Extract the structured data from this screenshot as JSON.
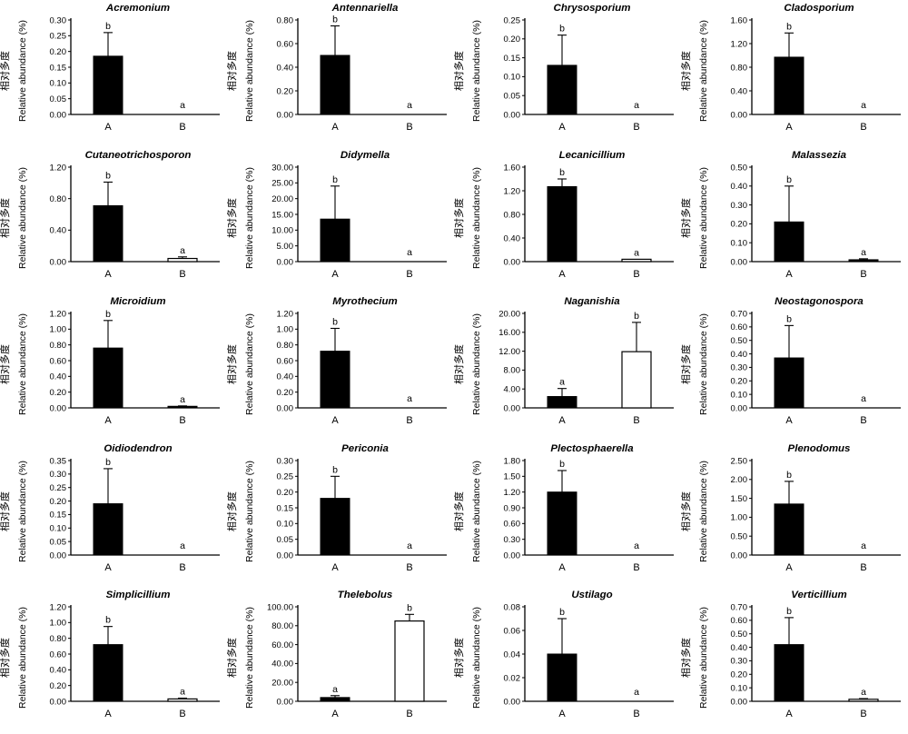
{
  "figure": {
    "y_axis_label_zh": "相对多度",
    "y_axis_label_en": "Relative abundance (%)",
    "x_categories": [
      "A",
      "B"
    ],
    "colors": {
      "bar_filled": "#000000",
      "bar_open": "#ffffff",
      "axis": "#000000",
      "background": "#ffffff"
    },
    "layout": {
      "rows": 5,
      "columns": 4,
      "grid": "off",
      "legend": "none"
    }
  },
  "chart_data": [
    {
      "type": "bar",
      "title": "Acremonium",
      "categories": [
        "A",
        "B"
      ],
      "values": [
        0.185,
        0
      ],
      "errors_plus": [
        0.075,
        0
      ],
      "sig_letters": [
        "b",
        "a"
      ],
      "bar_fills": [
        "black",
        "white"
      ],
      "ylim": [
        0,
        0.3
      ],
      "ytick_step": 0.05,
      "ytick_labels": [
        "0.00",
        "0.05",
        "0.10",
        "0.15",
        "0.20",
        "0.25",
        "0.30"
      ]
    },
    {
      "type": "bar",
      "title": "Antennariella",
      "categories": [
        "A",
        "B"
      ],
      "values": [
        0.5,
        0
      ],
      "errors_plus": [
        0.25,
        0
      ],
      "sig_letters": [
        "b",
        "a"
      ],
      "bar_fills": [
        "black",
        "white"
      ],
      "ylim": [
        0,
        0.8
      ],
      "ytick_step": 0.2,
      "ytick_labels": [
        "0.00",
        "0.20",
        "0.40",
        "0.60",
        "0.80"
      ]
    },
    {
      "type": "bar",
      "title": "Chrysosporium",
      "categories": [
        "A",
        "B"
      ],
      "values": [
        0.13,
        0
      ],
      "errors_plus": [
        0.08,
        0
      ],
      "sig_letters": [
        "b",
        "a"
      ],
      "bar_fills": [
        "black",
        "white"
      ],
      "ylim": [
        0,
        0.25
      ],
      "ytick_step": 0.05,
      "ytick_labels": [
        "0.00",
        "0.05",
        "0.10",
        "0.15",
        "0.20",
        "0.25"
      ]
    },
    {
      "type": "bar",
      "title": "Cladosporium",
      "categories": [
        "A",
        "B"
      ],
      "values": [
        0.97,
        0
      ],
      "errors_plus": [
        0.41,
        0
      ],
      "sig_letters": [
        "b",
        "a"
      ],
      "bar_fills": [
        "black",
        "white"
      ],
      "ylim": [
        0,
        1.6
      ],
      "ytick_step": 0.4,
      "ytick_labels": [
        "0.00",
        "0.40",
        "0.80",
        "1.20",
        "1.60"
      ]
    },
    {
      "type": "bar",
      "title": "Cutaneotrichosporon",
      "categories": [
        "A",
        "B"
      ],
      "values": [
        0.71,
        0.04
      ],
      "errors_plus": [
        0.3,
        0.02
      ],
      "sig_letters": [
        "b",
        "a"
      ],
      "bar_fills": [
        "black",
        "white"
      ],
      "ylim": [
        0,
        1.2
      ],
      "ytick_step": 0.4,
      "ytick_labels": [
        "0.00",
        "0.40",
        "0.80",
        "1.20"
      ]
    },
    {
      "type": "bar",
      "title": "Didymella",
      "categories": [
        "A",
        "B"
      ],
      "values": [
        13.5,
        0
      ],
      "errors_plus": [
        10.5,
        0
      ],
      "sig_letters": [
        "b",
        "a"
      ],
      "bar_fills": [
        "black",
        "white"
      ],
      "ylim": [
        0,
        30
      ],
      "ytick_step": 5,
      "ytick_labels": [
        "0.00",
        "5.00",
        "10.00",
        "15.00",
        "20.00",
        "25.00",
        "30.00"
      ]
    },
    {
      "type": "bar",
      "title": "Lecanicillium",
      "categories": [
        "A",
        "B"
      ],
      "values": [
        1.27,
        0.04
      ],
      "errors_plus": [
        0.13,
        0
      ],
      "sig_letters": [
        "b",
        "a"
      ],
      "bar_fills": [
        "black",
        "white"
      ],
      "ylim": [
        0,
        1.6
      ],
      "ytick_step": 0.4,
      "ytick_labels": [
        "0.00",
        "0.40",
        "0.80",
        "1.20",
        "1.60"
      ]
    },
    {
      "type": "bar",
      "title": "Malassezia",
      "categories": [
        "A",
        "B"
      ],
      "values": [
        0.21,
        0.01
      ],
      "errors_plus": [
        0.19,
        0.005
      ],
      "sig_letters": [
        "b",
        "a"
      ],
      "bar_fills": [
        "black",
        "black"
      ],
      "ylim": [
        0,
        0.5
      ],
      "ytick_step": 0.1,
      "ytick_labels": [
        "0.00",
        "0.10",
        "0.20",
        "0.30",
        "0.40",
        "0.50"
      ]
    },
    {
      "type": "bar",
      "title": "Microidium",
      "categories": [
        "A",
        "B"
      ],
      "values": [
        0.76,
        0.02
      ],
      "errors_plus": [
        0.35,
        0.005
      ],
      "sig_letters": [
        "b",
        "a"
      ],
      "bar_fills": [
        "black",
        "black"
      ],
      "ylim": [
        0,
        1.2
      ],
      "ytick_step": 0.2,
      "ytick_labels": [
        "0.00",
        "0.20",
        "0.40",
        "0.60",
        "0.80",
        "1.00",
        "1.20"
      ]
    },
    {
      "type": "bar",
      "title": "Myrothecium",
      "categories": [
        "A",
        "B"
      ],
      "values": [
        0.72,
        0
      ],
      "errors_plus": [
        0.29,
        0
      ],
      "sig_letters": [
        "b",
        "a"
      ],
      "bar_fills": [
        "black",
        "white"
      ],
      "ylim": [
        0,
        1.2
      ],
      "ytick_step": 0.2,
      "ytick_labels": [
        "0.00",
        "0.20",
        "0.40",
        "0.60",
        "0.80",
        "1.00",
        "1.20"
      ]
    },
    {
      "type": "bar",
      "title": "Naganishia",
      "categories": [
        "A",
        "B"
      ],
      "values": [
        2.4,
        11.9
      ],
      "errors_plus": [
        1.7,
        6.2
      ],
      "sig_letters": [
        "a",
        "b"
      ],
      "bar_fills": [
        "black",
        "white"
      ],
      "ylim": [
        0,
        20
      ],
      "ytick_step": 4,
      "ytick_labels": [
        "0.00",
        "4.00",
        "8.00",
        "12.00",
        "16.00",
        "20.00"
      ]
    },
    {
      "type": "bar",
      "title": "Neostagonospora",
      "categories": [
        "A",
        "B"
      ],
      "values": [
        0.37,
        0
      ],
      "errors_plus": [
        0.24,
        0
      ],
      "sig_letters": [
        "b",
        "a"
      ],
      "bar_fills": [
        "black",
        "white"
      ],
      "ylim": [
        0,
        0.7
      ],
      "ytick_step": 0.1,
      "ytick_labels": [
        "0.00",
        "0.10",
        "0.20",
        "0.30",
        "0.40",
        "0.50",
        "0.60",
        "0.70"
      ]
    },
    {
      "type": "bar",
      "title": "Oidiodendron",
      "categories": [
        "A",
        "B"
      ],
      "values": [
        0.19,
        0
      ],
      "errors_plus": [
        0.13,
        0
      ],
      "sig_letters": [
        "b",
        "a"
      ],
      "bar_fills": [
        "black",
        "white"
      ],
      "ylim": [
        0,
        0.35
      ],
      "ytick_step": 0.05,
      "ytick_labels": [
        "0.00",
        "0.05",
        "0.10",
        "0.15",
        "0.20",
        "0.25",
        "0.30",
        "0.35"
      ]
    },
    {
      "type": "bar",
      "title": "Periconia",
      "categories": [
        "A",
        "B"
      ],
      "values": [
        0.18,
        0
      ],
      "errors_plus": [
        0.07,
        0
      ],
      "sig_letters": [
        "b",
        "a"
      ],
      "bar_fills": [
        "black",
        "white"
      ],
      "ylim": [
        0,
        0.3
      ],
      "ytick_step": 0.05,
      "ytick_labels": [
        "0.00",
        "0.05",
        "0.10",
        "0.15",
        "0.20",
        "0.25",
        "0.30"
      ]
    },
    {
      "type": "bar",
      "title": "Plectosphaerella",
      "categories": [
        "A",
        "B"
      ],
      "values": [
        1.2,
        0
      ],
      "errors_plus": [
        0.41,
        0
      ],
      "sig_letters": [
        "b",
        "a"
      ],
      "bar_fills": [
        "black",
        "white"
      ],
      "ylim": [
        0,
        1.8
      ],
      "ytick_step": 0.3,
      "ytick_labels": [
        "0.00",
        "0.30",
        "0.60",
        "0.90",
        "1.20",
        "1.50",
        "1.80"
      ]
    },
    {
      "type": "bar",
      "title": "Plenodomus",
      "categories": [
        "A",
        "B"
      ],
      "values": [
        1.35,
        0
      ],
      "errors_plus": [
        0.6,
        0
      ],
      "sig_letters": [
        "b",
        "a"
      ],
      "bar_fills": [
        "black",
        "white"
      ],
      "ylim": [
        0,
        2.5
      ],
      "ytick_step": 0.5,
      "ytick_labels": [
        "0.00",
        "0.50",
        "1.00",
        "1.50",
        "2.00",
        "2.50"
      ]
    },
    {
      "type": "bar",
      "title": "Simplicillium",
      "categories": [
        "A",
        "B"
      ],
      "values": [
        0.72,
        0.03
      ],
      "errors_plus": [
        0.23,
        0.01
      ],
      "sig_letters": [
        "b",
        "a"
      ],
      "bar_fills": [
        "black",
        "white"
      ],
      "ylim": [
        0,
        1.2
      ],
      "ytick_step": 0.2,
      "ytick_labels": [
        "0.00",
        "0.20",
        "0.40",
        "0.60",
        "0.80",
        "1.00",
        "1.20"
      ]
    },
    {
      "type": "bar",
      "title": "Thelebolus",
      "categories": [
        "A",
        "B"
      ],
      "values": [
        4,
        85
      ],
      "errors_plus": [
        2,
        7
      ],
      "sig_letters": [
        "a",
        "b"
      ],
      "bar_fills": [
        "black",
        "white"
      ],
      "ylim": [
        0,
        100
      ],
      "ytick_step": 20,
      "ytick_labels": [
        "0.00",
        "20.00",
        "40.00",
        "60.00",
        "80.00",
        "100.00"
      ]
    },
    {
      "type": "bar",
      "title": "Ustilago",
      "categories": [
        "A",
        "B"
      ],
      "values": [
        0.04,
        0
      ],
      "errors_plus": [
        0.03,
        0
      ],
      "sig_letters": [
        "b",
        "a"
      ],
      "bar_fills": [
        "black",
        "white"
      ],
      "ylim": [
        0,
        0.08
      ],
      "ytick_step": 0.02,
      "ytick_labels": [
        "0.00",
        "0.02",
        "0.04",
        "0.06",
        "0.08"
      ]
    },
    {
      "type": "bar",
      "title": "Verticillium",
      "categories": [
        "A",
        "B"
      ],
      "values": [
        0.42,
        0.015
      ],
      "errors_plus": [
        0.2,
        0.005
      ],
      "sig_letters": [
        "b",
        "a"
      ],
      "bar_fills": [
        "black",
        "white"
      ],
      "ylim": [
        0,
        0.7
      ],
      "ytick_step": 0.1,
      "ytick_labels": [
        "0.00",
        "0.10",
        "0.20",
        "0.30",
        "0.40",
        "0.50",
        "0.60",
        "0.70"
      ]
    }
  ]
}
